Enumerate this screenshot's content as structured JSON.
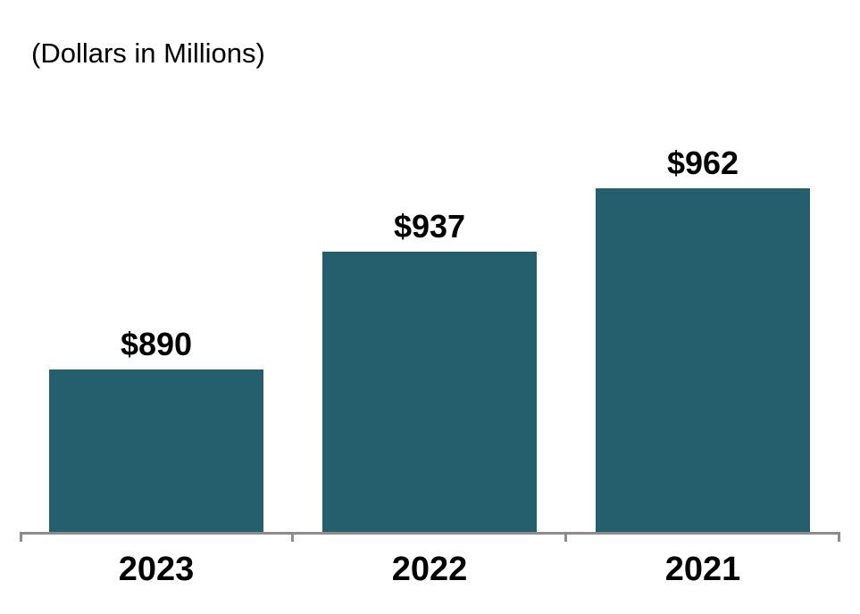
{
  "title": "(Dollars in Millions)",
  "chart_data": {
    "type": "bar",
    "title": "(Dollars in Millions)",
    "categories": [
      "2023",
      "2022",
      "2021"
    ],
    "values": [
      890,
      937,
      962
    ],
    "value_labels": [
      "$890",
      "$937",
      "$962"
    ],
    "xlabel": "",
    "ylabel": "",
    "ylim": [
      825,
      975
    ],
    "grid": false,
    "legend": "none",
    "bar_color": "#255E6C",
    "axis_color": "#8C8C8C",
    "text_color": "#000000"
  }
}
